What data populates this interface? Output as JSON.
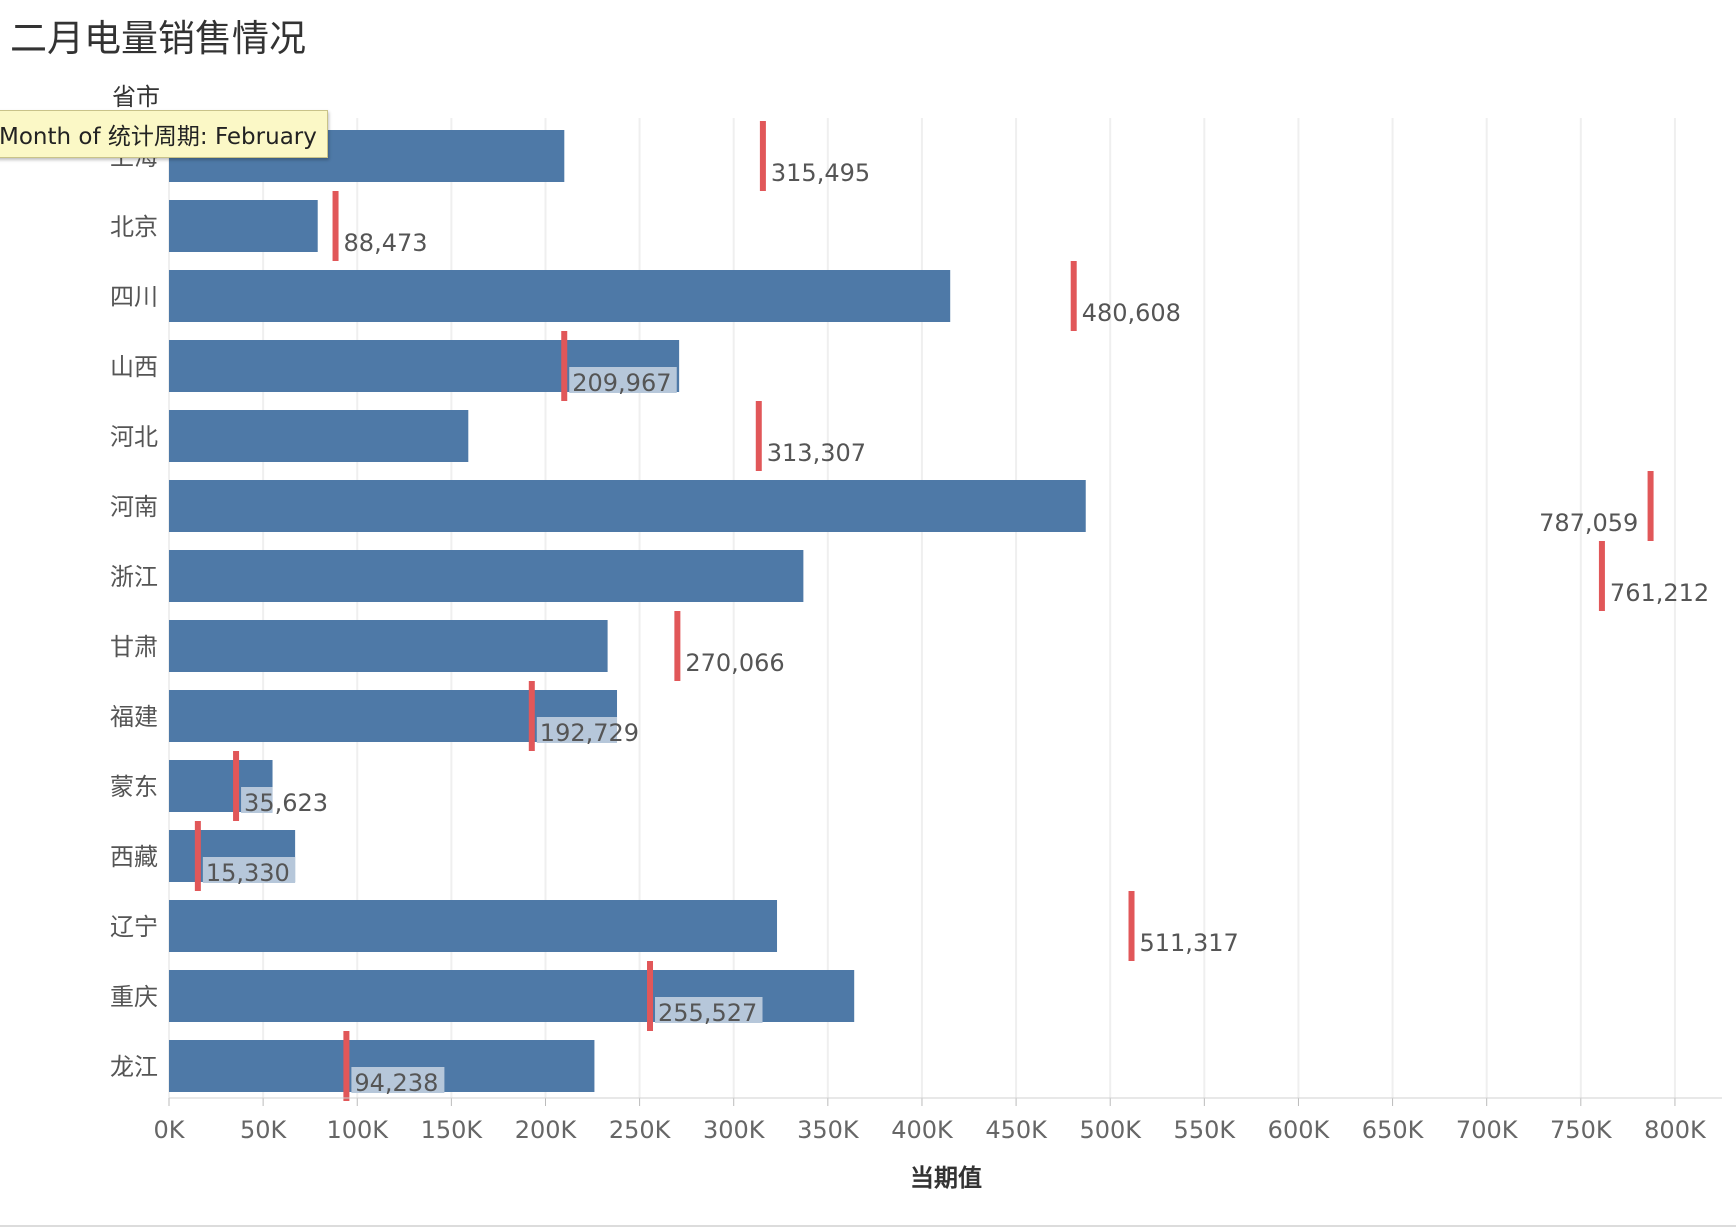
{
  "title": "二月电量销售情况",
  "tooltip": "Month of 统计周期: February",
  "colors": {
    "bar": "#4e79a7",
    "reference": "#e15759",
    "label_bg": "#b6c7da",
    "grid": "#efefef"
  },
  "chart_data": {
    "type": "bar",
    "orientation": "horizontal",
    "row_header": "省市",
    "xlabel": "当期值",
    "xlim": [
      0,
      825000
    ],
    "xticks": [
      0,
      50000,
      100000,
      150000,
      200000,
      250000,
      300000,
      350000,
      400000,
      450000,
      500000,
      550000,
      600000,
      650000,
      700000,
      750000,
      800000
    ],
    "xtick_labels": [
      "0K",
      "50K",
      "100K",
      "150K",
      "200K",
      "250K",
      "300K",
      "350K",
      "400K",
      "450K",
      "500K",
      "550K",
      "600K",
      "650K",
      "700K",
      "750K",
      "800K"
    ],
    "categories": [
      "上海",
      "北京",
      "四川",
      "山西",
      "河北",
      "河南",
      "浙江",
      "甘肃",
      "福建",
      "蒙东",
      "西藏",
      "辽宁",
      "重庆",
      "龙江"
    ],
    "values": [
      210000,
      79000,
      415000,
      271000,
      159000,
      487000,
      337000,
      233000,
      238000,
      55000,
      67000,
      323000,
      364000,
      226000
    ],
    "reference_values": [
      315495,
      88473,
      480608,
      209967,
      313307,
      787059,
      761212,
      270066,
      192729,
      35623,
      15330,
      511317,
      255527,
      94238
    ],
    "reference_labels": [
      "315,495",
      "88,473",
      "480,608",
      "209,967",
      "313,307",
      "787,059",
      "761,212",
      "270,066",
      "192,729",
      "35,623",
      "15,330",
      "511,317",
      "255,527",
      "94,238"
    ],
    "grid": true,
    "legend": "none"
  }
}
